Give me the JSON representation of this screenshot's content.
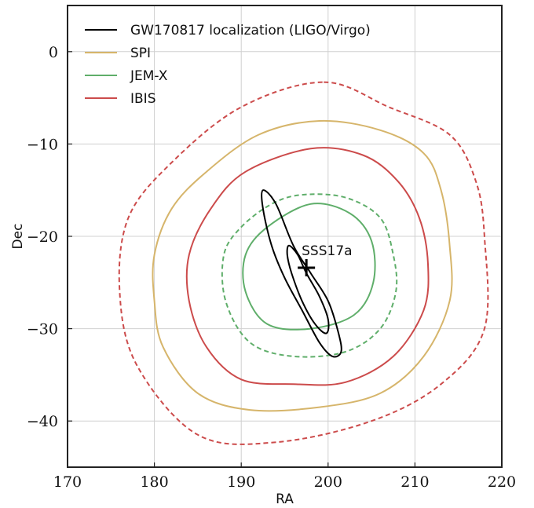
{
  "chart_data": {
    "type": "line",
    "title": "",
    "xlabel": "RA",
    "ylabel": "Dec",
    "xlim": [
      170,
      220
    ],
    "ylim": [
      -45,
      5
    ],
    "x_ticks": [
      170,
      180,
      190,
      200,
      210,
      220
    ],
    "y_ticks": [
      0,
      -10,
      -20,
      -30,
      -40
    ],
    "x_tick_labels": [
      "170",
      "180",
      "190",
      "200",
      "210",
      "220"
    ],
    "y_tick_labels": [
      "0",
      "−10",
      "−20",
      "−30",
      "−40"
    ],
    "grid": true,
    "legend_position": "top-left",
    "colors": {
      "gw": "#000000",
      "spi": "#d6b56b",
      "jemx": "#5fae6a",
      "ibis": "#cc4b4b"
    },
    "legend": [
      {
        "key": "gw",
        "label": "GW170817 localization (LIGO/Virgo)"
      },
      {
        "key": "spi",
        "label": "SPI"
      },
      {
        "key": "jemx",
        "label": "JEM-X"
      },
      {
        "key": "ibis",
        "label": "IBIS"
      }
    ],
    "annotation": {
      "text": "SSS17a",
      "x": 197.5,
      "y": -23.4
    },
    "series": [
      {
        "name": "IBIS",
        "key": "ibis",
        "style": "dashed",
        "points": [
          [
            199.5,
            -3.3
          ],
          [
            207,
            -6
          ],
          [
            214,
            -9
          ],
          [
            217,
            -14
          ],
          [
            218,
            -20
          ],
          [
            218,
            -30
          ],
          [
            213,
            -36
          ],
          [
            205,
            -40
          ],
          [
            194,
            -42.3
          ],
          [
            185,
            -41.5
          ],
          [
            178,
            -34
          ],
          [
            176,
            -26
          ],
          [
            177,
            -18
          ],
          [
            182,
            -12
          ],
          [
            190,
            -6
          ]
        ]
      },
      {
        "name": "SPI",
        "key": "spi",
        "style": "solid",
        "points": [
          [
            199,
            -7.5
          ],
          [
            206,
            -8.5
          ],
          [
            211,
            -11
          ],
          [
            213,
            -15
          ],
          [
            214,
            -21
          ],
          [
            214,
            -27
          ],
          [
            211,
            -33
          ],
          [
            206,
            -37
          ],
          [
            199,
            -38.5
          ],
          [
            191,
            -38.8
          ],
          [
            185,
            -37
          ],
          [
            181,
            -32
          ],
          [
            180,
            -27
          ],
          [
            180,
            -22
          ],
          [
            182,
            -17
          ],
          [
            186,
            -13
          ],
          [
            192,
            -9
          ]
        ]
      },
      {
        "name": "IBIS",
        "key": "ibis",
        "style": "solid",
        "points": [
          [
            198,
            -10.5
          ],
          [
            204,
            -11.2
          ],
          [
            208,
            -14
          ],
          [
            210.5,
            -18
          ],
          [
            211.5,
            -23
          ],
          [
            211,
            -28
          ],
          [
            207.5,
            -33
          ],
          [
            202,
            -35.8
          ],
          [
            196,
            -36
          ],
          [
            190,
            -35.5
          ],
          [
            186,
            -32
          ],
          [
            184,
            -27
          ],
          [
            184,
            -22
          ],
          [
            186.5,
            -17
          ],
          [
            190.5,
            -13
          ]
        ]
      },
      {
        "name": "JEM-X",
        "key": "jemx",
        "style": "dashed",
        "points": [
          [
            197,
            -15.5
          ],
          [
            202,
            -15.8
          ],
          [
            206,
            -18
          ],
          [
            207.5,
            -22
          ],
          [
            207.8,
            -26
          ],
          [
            206,
            -30
          ],
          [
            202,
            -32.5
          ],
          [
            196,
            -33
          ],
          [
            191,
            -31.5
          ],
          [
            188.2,
            -27
          ],
          [
            188,
            -22
          ],
          [
            190,
            -19
          ],
          [
            193.5,
            -16.5
          ]
        ]
      },
      {
        "name": "JEM-X",
        "key": "jemx",
        "style": "solid",
        "points": [
          [
            198,
            -16.5
          ],
          [
            202.5,
            -17.5
          ],
          [
            205,
            -20.5
          ],
          [
            205.2,
            -25
          ],
          [
            203,
            -28.5
          ],
          [
            198,
            -30
          ],
          [
            193,
            -29.5
          ],
          [
            190.5,
            -26
          ],
          [
            190.5,
            -22
          ],
          [
            193,
            -19
          ]
        ]
      },
      {
        "name": "GW170817",
        "key": "gw",
        "style": "solid",
        "points": [
          [
            192.5,
            -15
          ],
          [
            194,
            -16.5
          ],
          [
            196,
            -21
          ],
          [
            198,
            -24
          ],
          [
            200,
            -27
          ],
          [
            201.2,
            -30.5
          ],
          [
            201.5,
            -32.5
          ],
          [
            200.5,
            -33
          ],
          [
            199,
            -31.5
          ],
          [
            197,
            -28
          ],
          [
            195,
            -24.5
          ],
          [
            193.5,
            -21
          ],
          [
            192.5,
            -17
          ]
        ]
      },
      {
        "name": "GW170817",
        "key": "gw",
        "style": "solid",
        "points": [
          [
            195.5,
            -21
          ],
          [
            196.5,
            -22
          ],
          [
            197.5,
            -24
          ],
          [
            199,
            -26.5
          ],
          [
            200,
            -29
          ],
          [
            199.8,
            -30.5
          ],
          [
            198.5,
            -29.5
          ],
          [
            197,
            -27
          ],
          [
            195.8,
            -24
          ],
          [
            195.3,
            -22
          ]
        ]
      }
    ]
  }
}
